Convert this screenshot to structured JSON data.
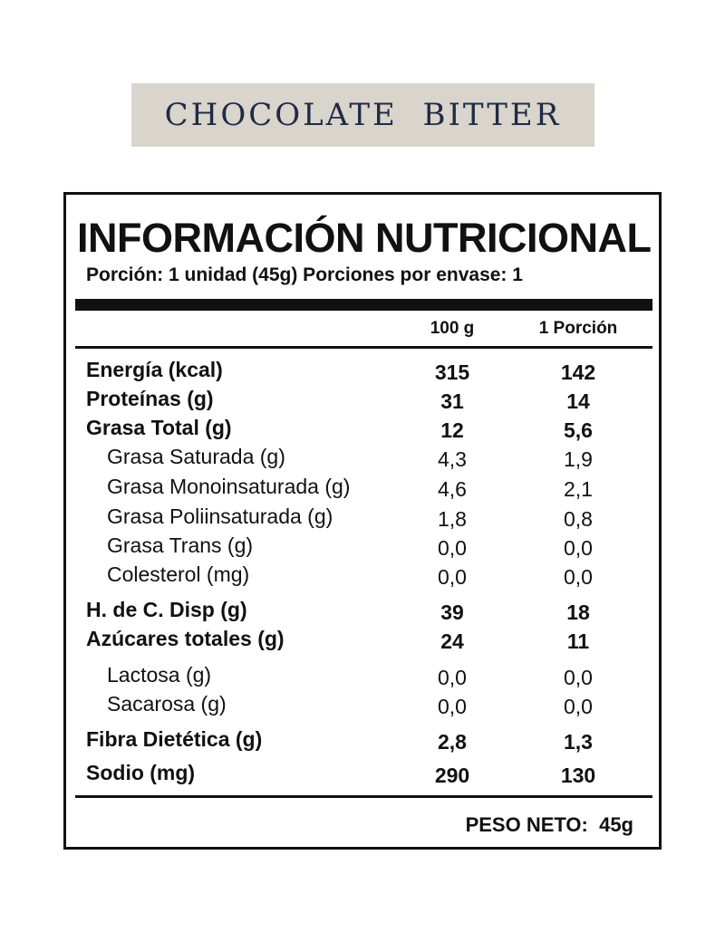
{
  "banner": {
    "title": "CHOCOLATE  BITTER"
  },
  "label": {
    "title": "INFORMACIÓN NUTRICIONAL",
    "serving": "Porción: 1 unidad (45g) Porciones por envase: 1",
    "columns": [
      "100 g",
      "1 Porción"
    ],
    "rows": [
      {
        "name": "Energía (kcal)",
        "per100": "315",
        "portion": "142"
      },
      {
        "name": "Proteínas (g)",
        "per100": "31",
        "portion": "14"
      },
      {
        "name": "Grasa Total (g)",
        "per100": "12",
        "portion": "5,6"
      },
      {
        "name": "Grasa Saturada (g)",
        "per100": "4,3",
        "portion": "1,9"
      },
      {
        "name": "Grasa Monoinsaturada (g)",
        "per100": "4,6",
        "portion": "2,1"
      },
      {
        "name": "Grasa Poliinsaturada (g)",
        "per100": "1,8",
        "portion": "0,8"
      },
      {
        "name": "Grasa Trans (g)",
        "per100": "0,0",
        "portion": "0,0"
      },
      {
        "name": "Colesterol (mg)",
        "per100": "0,0",
        "portion": "0,0"
      },
      {
        "name": "H. de C. Disp (g)",
        "per100": "39",
        "portion": "18"
      },
      {
        "name": "Azúcares totales (g)",
        "per100": "24",
        "portion": "11"
      },
      {
        "name": "Lactosa (g)",
        "per100": "0,0",
        "portion": "0,0"
      },
      {
        "name": "Sacarosa (g)",
        "per100": "0,0",
        "portion": "0,0"
      },
      {
        "name": "Fibra Dietética (g)",
        "per100": "2,8",
        "portion": "1,3"
      },
      {
        "name": "Sodio (mg)",
        "per100": "290",
        "portion": "130"
      }
    ],
    "net_weight": "PESO NETO:  45g"
  },
  "colors": {
    "banner_bg": "#d9d5cc",
    "banner_text": "#1f2a44",
    "ink": "#111111"
  }
}
